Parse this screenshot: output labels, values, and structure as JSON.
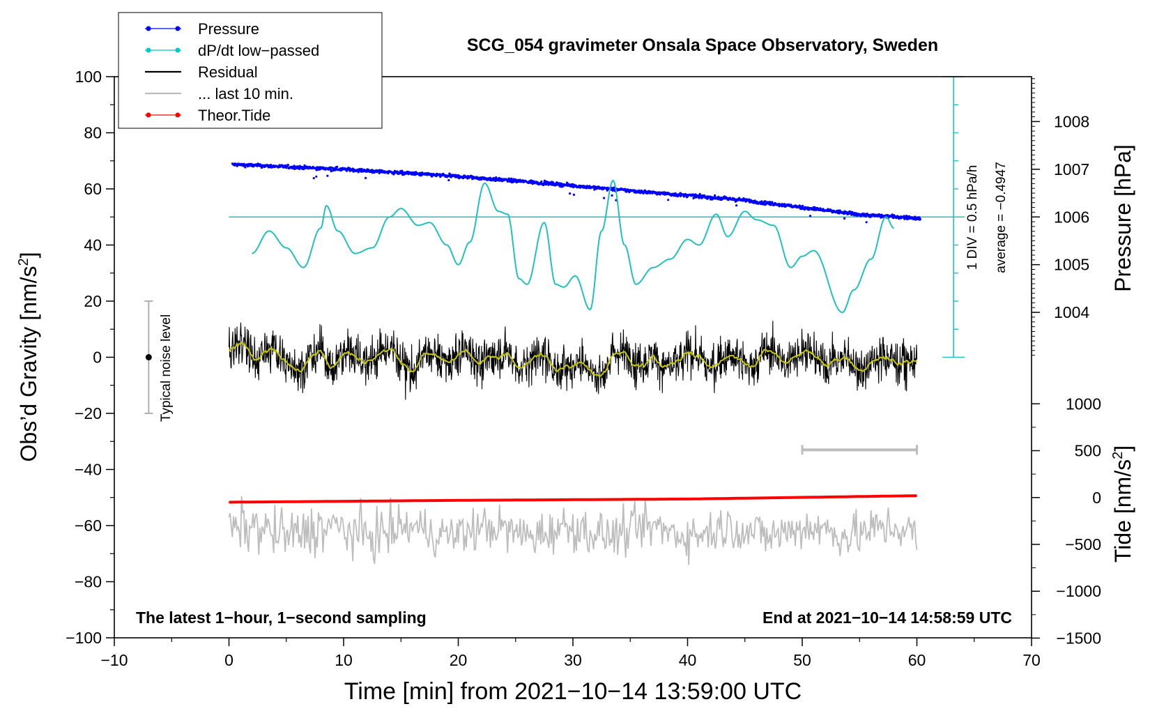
{
  "chart_data": {
    "type": "line",
    "title": "SCG_054 gravimeter Onsala Space Observatory, Sweden",
    "xlabel": "Time [min] from 2021−10−14 13:59:00 UTC",
    "ylabel": "Obs’d Gravity [nm/s",
    "ylabel_sup": "2",
    "ylabel_close": "]",
    "xlim": [
      -10,
      70
    ],
    "ylim": [
      -100,
      100
    ],
    "x_ticks": [
      -10,
      0,
      10,
      20,
      30,
      40,
      50,
      60,
      70
    ],
    "x_tick_labels": [
      "−10",
      "0",
      "10",
      "20",
      "30",
      "40",
      "50",
      "60",
      "70"
    ],
    "y_ticks": [
      -100,
      -80,
      -60,
      -40,
      -20,
      0,
      20,
      40,
      60,
      80,
      100
    ],
    "y_tick_labels": [
      "−100",
      "−80",
      "−60",
      "−40",
      "−20",
      "0",
      "20",
      "40",
      "60",
      "80",
      "100"
    ],
    "pressure_axis": {
      "label": "Pressure [hPa]",
      "ticks": [
        1004,
        1005,
        1006,
        1007,
        1008
      ],
      "tick_labels": [
        "1004",
        "1005",
        "1006",
        "1007",
        "1008"
      ],
      "map_gravity_at_1006": 50,
      "gravity_per_hPa": 17
    },
    "tide_axis": {
      "label": "Tide [nm/s",
      "label_sup": "2",
      "label_close": "]",
      "ticks": [
        1000,
        500,
        0,
        -500,
        -1000,
        -1500
      ],
      "tick_labels": [
        "1000",
        "500",
        "0",
        "−500",
        "−1000",
        "−1500"
      ],
      "map_gravity_at_0": -50,
      "gravity_per_unit": 0.0334
    },
    "legend": {
      "placement": "top-left",
      "entries": [
        {
          "label": "Pressure",
          "color": "#0000ff",
          "marker": true
        },
        {
          "label": "dP/dt low−passed",
          "color": "#00c8c8",
          "marker": true
        },
        {
          "label": "Residual",
          "color": "#000000",
          "marker": false
        },
        {
          "label": "... last 10 min.",
          "color": "#bdbdbd",
          "marker": false
        },
        {
          "label": "Theor.Tide",
          "color": "#ff0000",
          "marker": true
        }
      ]
    },
    "series": [
      {
        "name": "Pressure",
        "color": "#0000ff",
        "unit": "hPa",
        "x_start": 0.3,
        "x_end": 60.3,
        "trend": [
          [
            0.3,
            1007.1
          ],
          [
            10,
            1007.0
          ],
          [
            20,
            1006.85
          ],
          [
            28,
            1006.7
          ],
          [
            35,
            1006.55
          ],
          [
            45,
            1006.35
          ],
          [
            55,
            1006.05
          ],
          [
            60.3,
            1005.97
          ]
        ]
      },
      {
        "name": "dP/dt low-passed",
        "color": "#20c0c0",
        "unit": "gravity-axis units",
        "points": [
          [
            2,
            37
          ],
          [
            3.5,
            45
          ],
          [
            5,
            39
          ],
          [
            6.5,
            32
          ],
          [
            8,
            46
          ],
          [
            8.5,
            54
          ],
          [
            9.5,
            45
          ],
          [
            11,
            37
          ],
          [
            12.5,
            39
          ],
          [
            14,
            50
          ],
          [
            15,
            53
          ],
          [
            16.5,
            47
          ],
          [
            17.5,
            48
          ],
          [
            19,
            40
          ],
          [
            20,
            33
          ],
          [
            21,
            41
          ],
          [
            22.3,
            62
          ],
          [
            23.5,
            52
          ],
          [
            24.3,
            51
          ],
          [
            25.3,
            28
          ],
          [
            26,
            26
          ],
          [
            27.5,
            48
          ],
          [
            28.5,
            26
          ],
          [
            29.2,
            25
          ],
          [
            30.2,
            29
          ],
          [
            31.5,
            17
          ],
          [
            32.5,
            45
          ],
          [
            33.5,
            63
          ],
          [
            34.5,
            40
          ],
          [
            35.5,
            26
          ],
          [
            37,
            32
          ],
          [
            38.5,
            35
          ],
          [
            40,
            42
          ],
          [
            41,
            40
          ],
          [
            42.5,
            51
          ],
          [
            43.5,
            43
          ],
          [
            45,
            52
          ],
          [
            46,
            49
          ],
          [
            47.5,
            47
          ],
          [
            49,
            32
          ],
          [
            50,
            36
          ],
          [
            51,
            38
          ],
          [
            53.5,
            16
          ],
          [
            54.5,
            24
          ],
          [
            56,
            35
          ],
          [
            57.3,
            50
          ],
          [
            58,
            46
          ]
        ]
      },
      {
        "name": "Residual",
        "color": "#000000",
        "mean": 0,
        "amplitude": 4,
        "x_start": 0,
        "x_end": 60
      },
      {
        "name": "Residual 1-min average",
        "color": "#c8c800",
        "mean": 0,
        "amplitude": 2
      },
      {
        "name": "... last 10 min.",
        "color": "#bdbdbd",
        "mean": -62,
        "amplitude": 4
      },
      {
        "name": "Theor.Tide",
        "color": "#ff0000",
        "unit": "nm/s2",
        "points": [
          [
            0,
            -50
          ],
          [
            20,
            -30
          ],
          [
            40,
            -16
          ],
          [
            60.3,
            20
          ]
        ]
      }
    ],
    "scale_bar": {
      "left_label": "1 DIV = 0.5 hPa/h",
      "right_label": "average = −0.4947",
      "from": 0,
      "to": 100,
      "ticks_step": 10,
      "zero_line_at": 50
    },
    "noise_indicator": {
      "label": "Typical noise level",
      "from": -20,
      "to": 20,
      "center": 0,
      "x": -7
    },
    "ten_min_bar": {
      "x_from": 50,
      "x_to": 60,
      "y": -33
    },
    "annotation_left": "The latest 1−hour, 1−second sampling",
    "annotation_right": "End at 2021−10−14 14:58:59 UTC"
  }
}
